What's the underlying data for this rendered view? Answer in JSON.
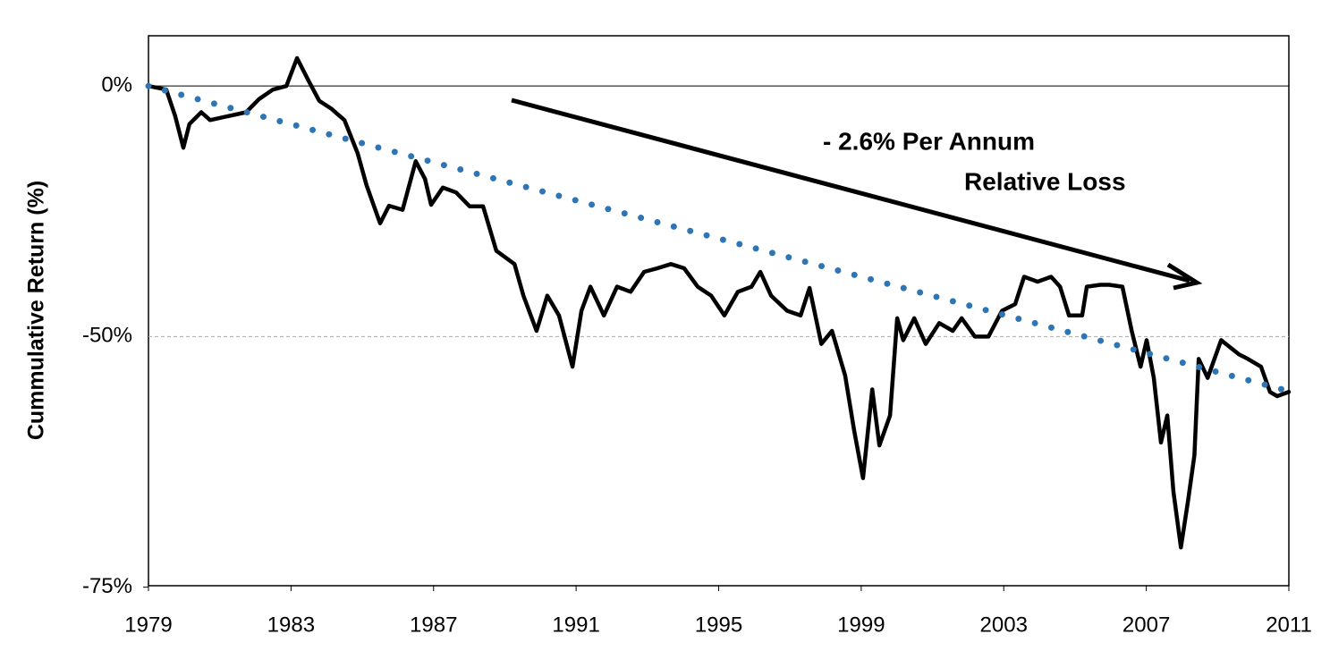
{
  "chart_data": {
    "type": "line",
    "y_label": "Cummulative Return (%)",
    "annotations": [
      "- 2.6% Per Annum",
      "Relative Loss"
    ],
    "log_scale": true,
    "grid": true,
    "xlim": [
      1979,
      2011
    ],
    "xticks": [
      1979,
      1983,
      1987,
      1991,
      1995,
      1999,
      2003,
      2007,
      2011
    ],
    "ylim": [
      -74.9,
      14.9
    ],
    "yticks": [
      {
        "value": 0,
        "label": "0%"
      },
      {
        "value": -50,
        "label": "-50%"
      },
      {
        "value": -75,
        "label": "-75%"
      }
    ],
    "series": [
      {
        "color": "#000000",
        "style": "solid",
        "x": [
          1979.0,
          1979.5,
          1979.75,
          1979.98,
          1980.15,
          1980.48,
          1980.73,
          1981.23,
          1981.74,
          1982.11,
          1982.49,
          1982.87,
          1983.17,
          1983.49,
          1983.79,
          1984.12,
          1984.5,
          1984.87,
          1985.12,
          1985.5,
          1985.75,
          1986.13,
          1986.5,
          1986.76,
          1986.93,
          1987.26,
          1987.63,
          1988.01,
          1988.39,
          1988.76,
          1989.27,
          1989.52,
          1989.89,
          1990.19,
          1990.52,
          1990.9,
          1991.15,
          1991.4,
          1991.78,
          1992.15,
          1992.53,
          1992.91,
          1993.28,
          1993.66,
          1994.03,
          1994.41,
          1994.79,
          1995.16,
          1995.54,
          1995.92,
          1996.17,
          1996.47,
          1996.92,
          1997.3,
          1997.55,
          1997.88,
          1998.18,
          1998.55,
          1998.8,
          1999.05,
          1999.31,
          1999.51,
          1999.81,
          2000.01,
          2000.18,
          2000.49,
          2000.81,
          2001.19,
          2001.57,
          2001.82,
          2002.19,
          2002.57,
          2002.95,
          2003.32,
          2003.57,
          2003.95,
          2004.33,
          2004.58,
          2004.83,
          2005.2,
          2005.33,
          2005.71,
          2005.96,
          2006.33,
          2006.59,
          2006.84,
          2007.01,
          2007.21,
          2007.41,
          2007.59,
          2007.76,
          2007.97,
          2008.17,
          2008.35,
          2008.47,
          2008.72,
          2009.1,
          2009.6,
          2009.85,
          2010.22,
          2010.47,
          2010.67,
          2011.0
        ],
        "values": [
          0,
          -1,
          -8,
          -15.7,
          -10,
          -7,
          -9,
          -8,
          -7,
          -3.5,
          -1,
          0,
          8,
          1.5,
          -4,
          -6,
          -9,
          -17,
          -24,
          -31.6,
          -28.2,
          -29,
          -18.8,
          -22.7,
          -28,
          -24.5,
          -25.5,
          -28.3,
          -28.3,
          -36.6,
          -38.9,
          -44,
          -49.2,
          -44,
          -47,
          -54,
          -46.3,
          -42.6,
          -47,
          -42.6,
          -43.4,
          -40.2,
          -39.6,
          -38.9,
          -39.6,
          -42.6,
          -44,
          -47,
          -43.4,
          -42.6,
          -40.2,
          -44,
          -46.3,
          -47,
          -42.8,
          -51,
          -49.2,
          -55.1,
          -61.4,
          -66.2,
          -56.8,
          -63,
          -59.8,
          -47.4,
          -50.5,
          -47.4,
          -51,
          -48.1,
          -49.2,
          -47.4,
          -50,
          -50,
          -46.3,
          -45.3,
          -41,
          -41.8,
          -41,
          -42.6,
          -47,
          -47,
          -42.6,
          -42.3,
          -42.3,
          -42.6,
          -49.2,
          -54,
          -50.5,
          -55.4,
          -62.7,
          -59.8,
          -67.4,
          -72.1,
          -68.3,
          -64,
          -53,
          -55.4,
          -50.5,
          -52.4,
          -53,
          -54,
          -57.1,
          -57.6,
          -57.1
        ]
      },
      {
        "color": "#2e75b6",
        "style": "dotted",
        "x": [
          1979,
          2011
        ],
        "values": [
          0,
          -57
        ]
      }
    ]
  }
}
